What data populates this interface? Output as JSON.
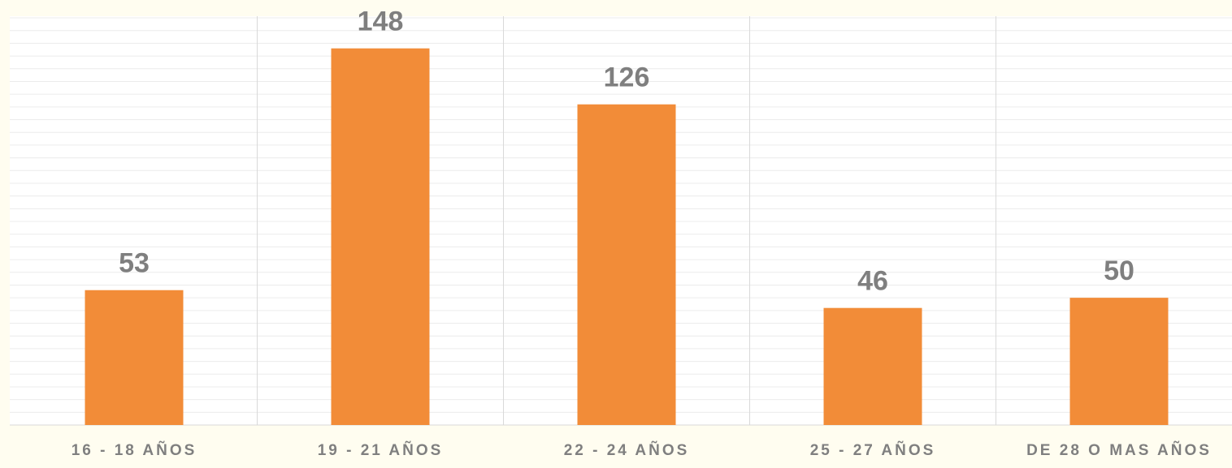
{
  "chart_data": {
    "type": "bar",
    "categories": [
      "16 - 18 AÑOS",
      "19 - 21 AÑOS",
      "22 - 24 AÑOS",
      "25 - 27 AÑOS",
      "DE 28 O MAS AÑOS"
    ],
    "values": [
      53,
      148,
      126,
      46,
      50
    ],
    "color": "#f28c38",
    "ylim": [
      0,
      160
    ],
    "yticks": [
      0,
      5,
      10,
      15,
      20,
      25,
      30,
      35,
      40,
      45,
      50,
      55,
      60,
      65,
      70,
      75,
      80,
      85,
      90,
      95,
      100,
      105,
      110,
      115,
      120,
      125,
      130,
      135,
      140,
      145,
      150,
      155,
      160
    ],
    "grid": true
  }
}
